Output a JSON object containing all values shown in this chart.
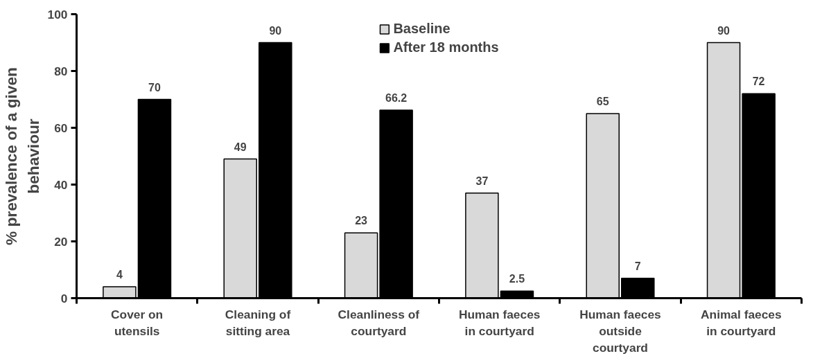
{
  "chart_data": {
    "type": "bar",
    "ylabel": "% prevalence of a given\nbehaviour",
    "categories": [
      "Cover on\nutensils",
      "Cleaning of\nsitting area",
      "Cleanliness of\ncourtyard",
      "Human faeces\nin courtyard",
      "Human faeces\noutside\ncourtyard",
      "Animal faeces\nin courtyard"
    ],
    "series": [
      {
        "name": "Baseline",
        "color": "#d9d9d9",
        "values": [
          4,
          49,
          23,
          37,
          65,
          90
        ]
      },
      {
        "name": "After 18 months",
        "color": "#000000",
        "values": [
          70,
          90,
          66.2,
          2.5,
          7,
          72
        ]
      }
    ],
    "ylim": [
      0,
      100
    ],
    "yticks": [
      0,
      20,
      40,
      60,
      80,
      100
    ],
    "data_labels": true,
    "legend": "top",
    "grid": false
  }
}
